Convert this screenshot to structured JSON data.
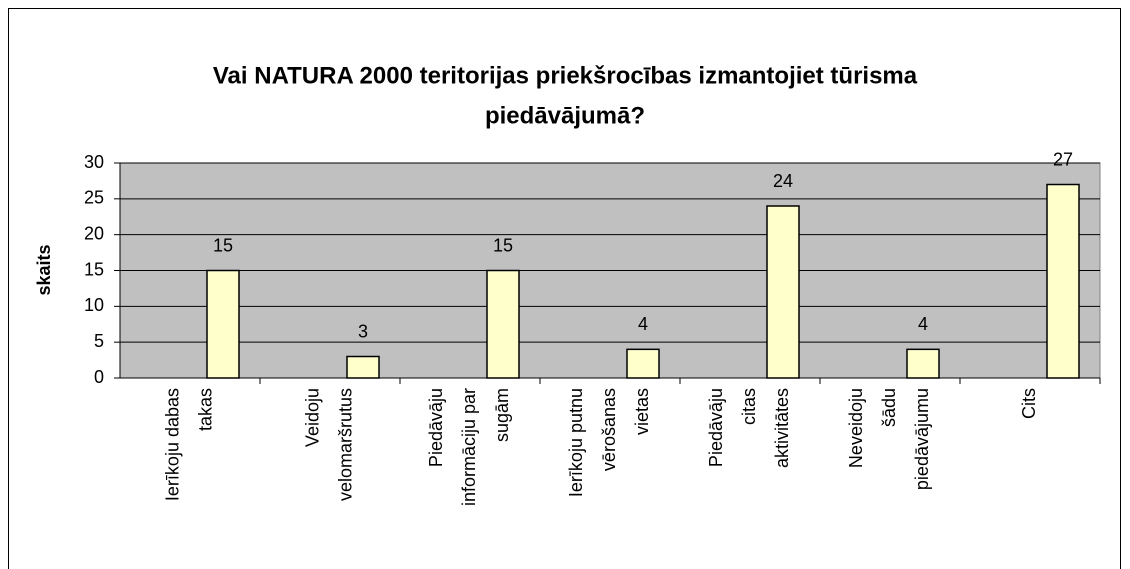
{
  "chart_data": {
    "type": "bar",
    "title": [
      "Vai NATURA 2000 teritorijas priekšrocības izmantojiet tūrisma",
      "piedāvājumā?"
    ],
    "ylabel": "skaits",
    "categories": [
      [
        "Ierīkoju dabas",
        "takas"
      ],
      [
        "Veidoju",
        "velomaršrutus"
      ],
      [
        "Piedāvāju",
        "informāciju par",
        "sugām"
      ],
      [
        "Ierīkoju putnu",
        "vērošanas",
        "vietas"
      ],
      [
        "Piedāvāju",
        "citas",
        "aktivitātes"
      ],
      [
        "Neveidoju",
        "šādu",
        "piedāvājumu"
      ],
      [
        "Cits"
      ]
    ],
    "values": [
      15,
      3,
      15,
      4,
      24,
      4,
      27
    ],
    "color": "#ffffcc",
    "ylim": [
      0,
      30
    ],
    "yticks": [
      0,
      5,
      10,
      15,
      20,
      25,
      30
    ],
    "grid": true
  }
}
